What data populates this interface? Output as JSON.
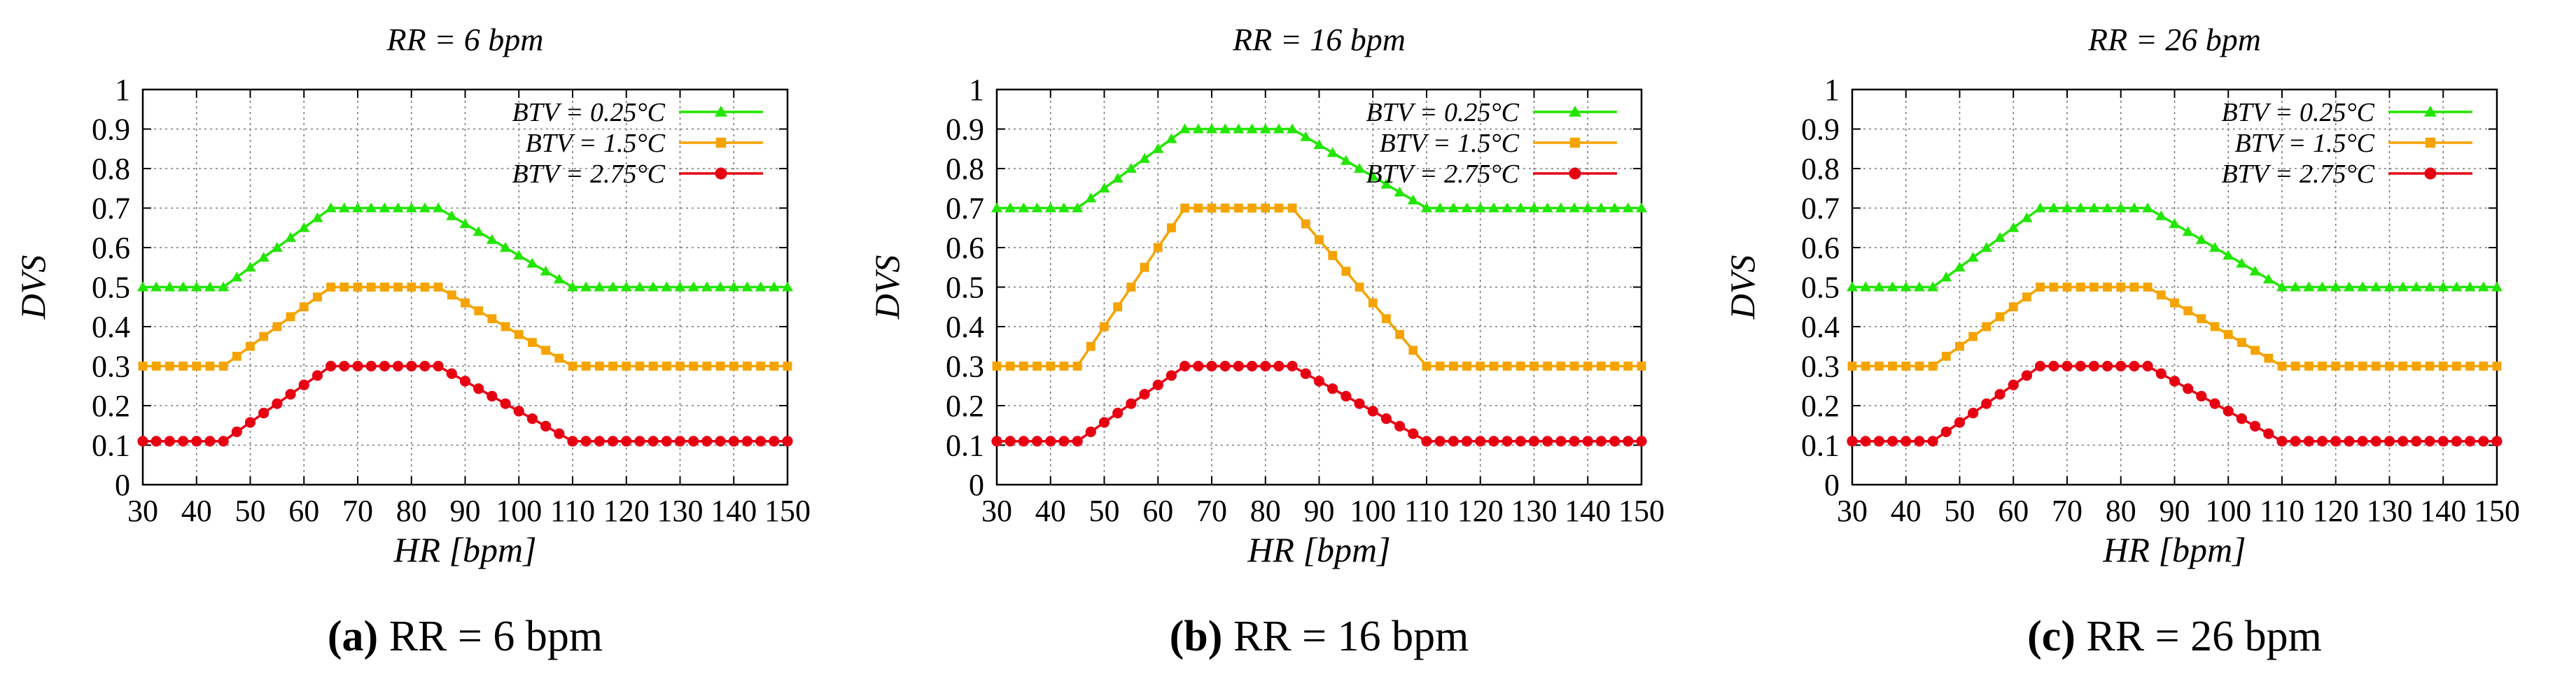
{
  "colors": {
    "bg": "#ffffff",
    "grid": "#7a7a7a",
    "frame": "#000000",
    "green": "#22e600",
    "orange": "#f5a300",
    "red": "#e60012"
  },
  "chart_data": [
    {
      "type": "line",
      "title": "RR = 6 bpm",
      "xlabel": "HR [bpm]",
      "ylabel": "DVS",
      "xlim": [
        30,
        150
      ],
      "ylim": [
        0,
        1
      ],
      "xticks": [
        30,
        40,
        50,
        60,
        70,
        80,
        90,
        100,
        110,
        120,
        130,
        140,
        150
      ],
      "yticks": [
        0,
        0.1,
        0.2,
        0.3,
        0.4,
        0.5,
        0.6,
        0.7,
        0.8,
        0.9,
        1
      ],
      "legend_position": "top-right",
      "caption": {
        "letter": "(a)",
        "text": "RR = 6 bpm"
      },
      "series": [
        {
          "name": "BTV = 0.25°C",
          "marker": "triangle",
          "color": "#22e600",
          "x": [
            30,
            45,
            65,
            85,
            110,
            150
          ],
          "y": [
            0.5,
            0.5,
            0.7,
            0.7,
            0.5,
            0.5
          ]
        },
        {
          "name": "BTV = 1.5°C",
          "marker": "square",
          "color": "#f5a300",
          "x": [
            30,
            45,
            65,
            85,
            110,
            150
          ],
          "y": [
            0.3,
            0.3,
            0.5,
            0.5,
            0.3,
            0.3
          ]
        },
        {
          "name": "BTV = 2.75°C",
          "marker": "circle",
          "color": "#e60012",
          "x": [
            30,
            45,
            65,
            85,
            110,
            150
          ],
          "y": [
            0.11,
            0.11,
            0.3,
            0.3,
            0.11,
            0.11
          ]
        }
      ]
    },
    {
      "type": "line",
      "title": "RR = 16 bpm",
      "xlabel": "HR [bpm]",
      "ylabel": "DVS",
      "xlim": [
        30,
        150
      ],
      "ylim": [
        0,
        1
      ],
      "xticks": [
        30,
        40,
        50,
        60,
        70,
        80,
        90,
        100,
        110,
        120,
        130,
        140,
        150
      ],
      "yticks": [
        0,
        0.1,
        0.2,
        0.3,
        0.4,
        0.5,
        0.6,
        0.7,
        0.8,
        0.9,
        1
      ],
      "legend_position": "top-right",
      "caption": {
        "letter": "(b)",
        "text": "RR = 16 bpm"
      },
      "series": [
        {
          "name": "BTV = 0.25°C",
          "marker": "triangle",
          "color": "#22e600",
          "x": [
            30,
            45,
            65,
            85,
            110,
            150
          ],
          "y": [
            0.7,
            0.7,
            0.9,
            0.9,
            0.7,
            0.7
          ]
        },
        {
          "name": "BTV = 1.5°C",
          "marker": "square",
          "color": "#f5a300",
          "x": [
            30,
            45,
            65,
            85,
            110,
            150
          ],
          "y": [
            0.3,
            0.3,
            0.7,
            0.7,
            0.3,
            0.3
          ]
        },
        {
          "name": "BTV = 2.75°C",
          "marker": "circle",
          "color": "#e60012",
          "x": [
            30,
            45,
            65,
            85,
            110,
            150
          ],
          "y": [
            0.11,
            0.11,
            0.3,
            0.3,
            0.11,
            0.11
          ]
        }
      ]
    },
    {
      "type": "line",
      "title": "RR = 26 bpm",
      "xlabel": "HR [bpm]",
      "ylabel": "DVS",
      "xlim": [
        30,
        150
      ],
      "ylim": [
        0,
        1
      ],
      "xticks": [
        30,
        40,
        50,
        60,
        70,
        80,
        90,
        100,
        110,
        120,
        130,
        140,
        150
      ],
      "yticks": [
        0,
        0.1,
        0.2,
        0.3,
        0.4,
        0.5,
        0.6,
        0.7,
        0.8,
        0.9,
        1
      ],
      "legend_position": "top-right",
      "caption": {
        "letter": "(c)",
        "text": "RR = 26 bpm"
      },
      "series": [
        {
          "name": "BTV = 0.25°C",
          "marker": "triangle",
          "color": "#22e600",
          "x": [
            30,
            45,
            65,
            85,
            110,
            150
          ],
          "y": [
            0.5,
            0.5,
            0.7,
            0.7,
            0.5,
            0.5
          ]
        },
        {
          "name": "BTV = 1.5°C",
          "marker": "square",
          "color": "#f5a300",
          "x": [
            30,
            45,
            65,
            85,
            110,
            150
          ],
          "y": [
            0.3,
            0.3,
            0.5,
            0.5,
            0.3,
            0.3
          ]
        },
        {
          "name": "BTV = 2.75°C",
          "marker": "circle",
          "color": "#e60012",
          "x": [
            30,
            45,
            65,
            85,
            110,
            150
          ],
          "y": [
            0.11,
            0.11,
            0.3,
            0.3,
            0.11,
            0.11
          ]
        }
      ]
    }
  ]
}
